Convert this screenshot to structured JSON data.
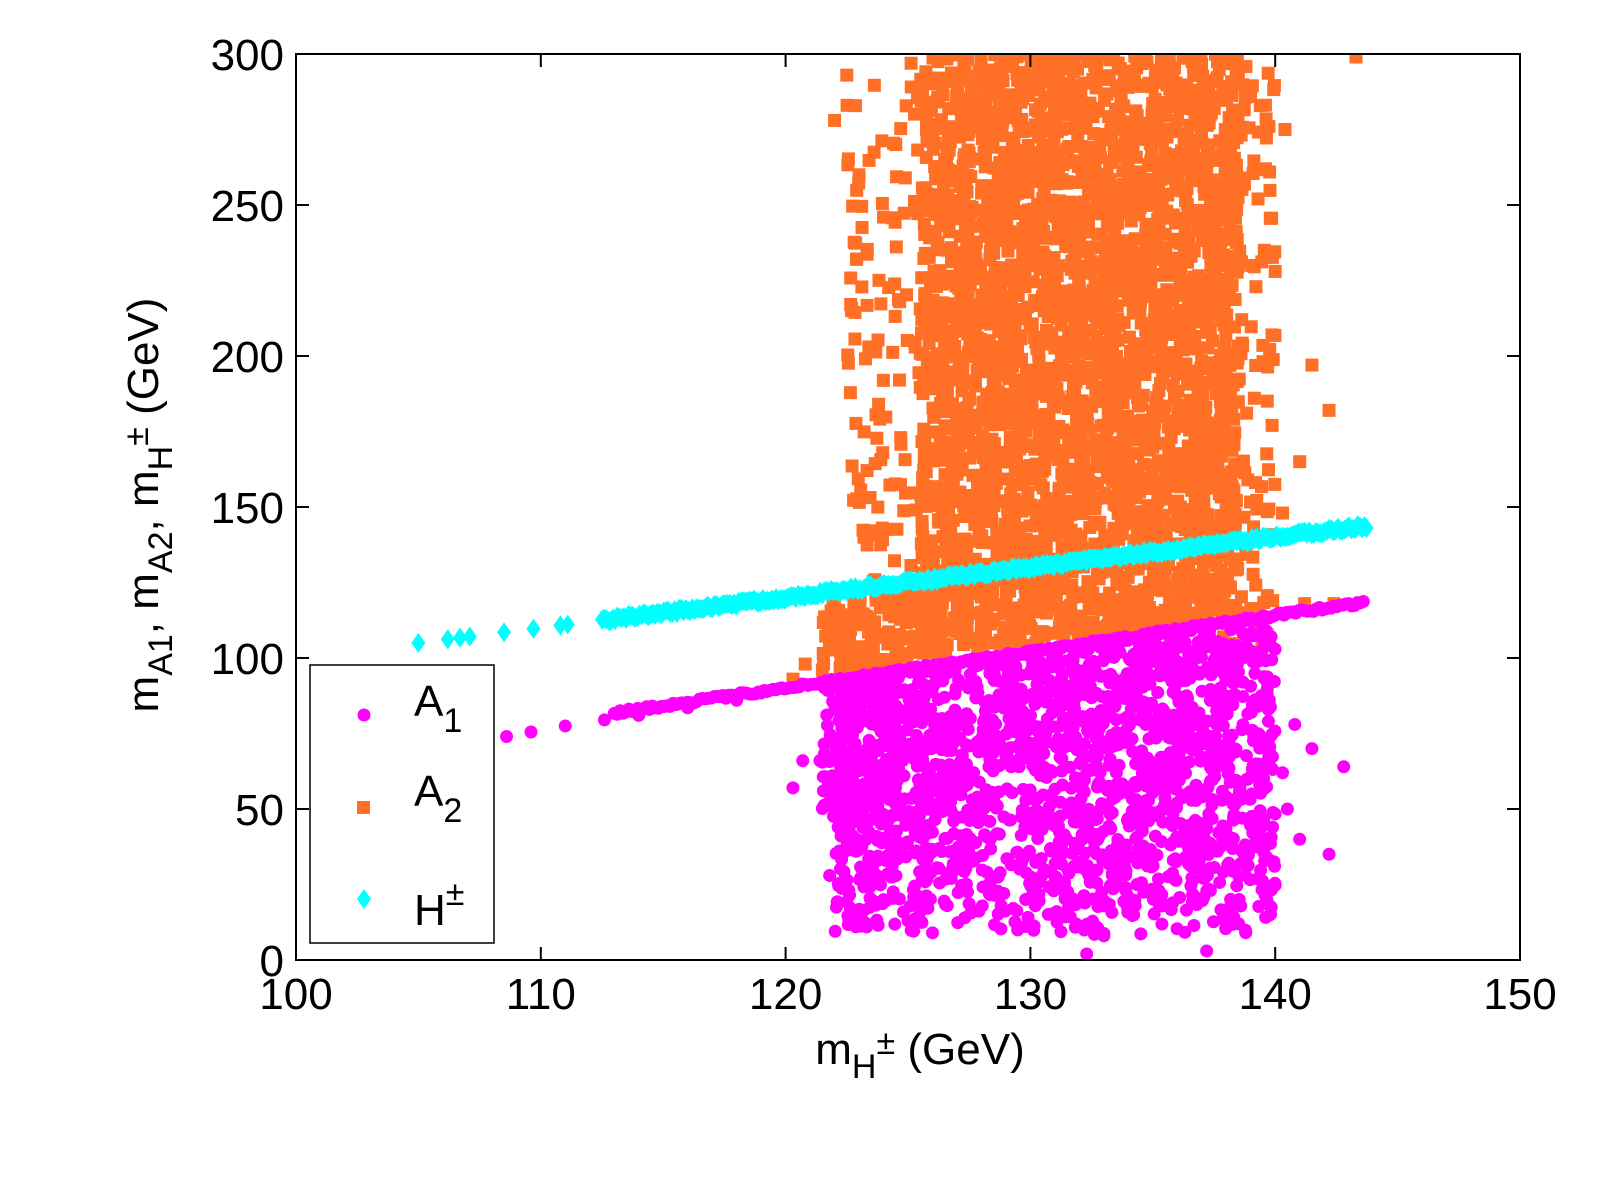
{
  "chart_data": {
    "type": "scatter",
    "title": "",
    "xlabel": {
      "base": "m",
      "sub": "H",
      "subsup": "±",
      "unit": " (GeV)"
    },
    "ylabel": {
      "parts": [
        {
          "base": "m",
          "sub": "A1"
        },
        {
          "base": ", m",
          "sub": "A2"
        },
        {
          "base": ", m",
          "sub": "H",
          "subsup": "±"
        },
        {
          "base": " (GeV)"
        }
      ]
    },
    "xlim": [
      100,
      150
    ],
    "ylim": [
      0,
      300
    ],
    "xticks": [
      "100",
      "110",
      "120",
      "130",
      "140",
      "150"
    ],
    "yticks": [
      "0",
      "50",
      "100",
      "150",
      "200",
      "250",
      "300"
    ],
    "grid": false,
    "legend_position": "bottom-left",
    "series": [
      {
        "name": "A1",
        "label_base": "A",
        "label_sub": "1",
        "marker": "circle",
        "color": "#ff00ff",
        "line_x": [
          104,
          143.7
        ],
        "line_y": [
          71,
          118.5
        ],
        "cloud": {
          "x_range": [
            122,
            140
          ],
          "y_range": [
            8,
            100
          ]
        },
        "points": [
          [
            108.6,
            74
          ],
          [
            109.6,
            75.5
          ],
          [
            111,
            77.5
          ],
          [
            112.6,
            79.5
          ],
          [
            114,
            81
          ],
          [
            116,
            83.5
          ],
          [
            118,
            86
          ],
          [
            120.3,
            57
          ],
          [
            120.7,
            66
          ],
          [
            121.4,
            66
          ],
          [
            121.8,
            28
          ],
          [
            140.8,
            78
          ],
          [
            141.5,
            70
          ],
          [
            142.8,
            64
          ],
          [
            142.2,
            35
          ],
          [
            141,
            40
          ],
          [
            140.5,
            50
          ],
          [
            132.3,
            2
          ],
          [
            137.2,
            3
          ],
          [
            140.3,
            62
          ],
          [
            124,
            20
          ],
          [
            125,
            13
          ],
          [
            126,
            9
          ],
          [
            133,
            8
          ]
        ]
      },
      {
        "name": "A2",
        "label_base": "A",
        "label_sub": "2",
        "marker": "square",
        "color": "#ff7026",
        "cloud": {
          "x_range": [
            125.5,
            138.5
          ],
          "y_range": [
            97,
            300
          ]
        },
        "points": [
          [
            120.3,
            93
          ],
          [
            120.8,
            98
          ],
          [
            121.5,
            96
          ],
          [
            122,
            278
          ],
          [
            122.5,
            293
          ],
          [
            122.7,
            215
          ],
          [
            123,
            260
          ],
          [
            122.9,
            232
          ],
          [
            123.4,
            203
          ],
          [
            123.2,
            140
          ],
          [
            123.8,
            184
          ],
          [
            124,
            246
          ],
          [
            124.5,
            270
          ],
          [
            139.6,
            262
          ],
          [
            140,
            228
          ],
          [
            140.4,
            275
          ],
          [
            141,
            165
          ],
          [
            141.5,
            197
          ],
          [
            142.2,
            182
          ],
          [
            143.3,
            299
          ],
          [
            139.3,
            252
          ],
          [
            140.3,
            148
          ],
          [
            139.9,
            119
          ],
          [
            141.2,
            118
          ],
          [
            142.4,
            118
          ],
          [
            123.5,
            107
          ],
          [
            124.2,
            124
          ]
        ]
      },
      {
        "name": "H±",
        "label_base": "H",
        "label_sup": "±",
        "marker": "diamond",
        "color": "#00ffff",
        "line_x": [
          105,
          143.8
        ],
        "line_y": [
          105,
          143.8
        ],
        "dense_from": 112.5,
        "sparse_x": [
          105,
          106.2,
          106.7,
          107.1,
          108.5,
          109.7,
          110.8,
          111.1
        ]
      }
    ]
  }
}
